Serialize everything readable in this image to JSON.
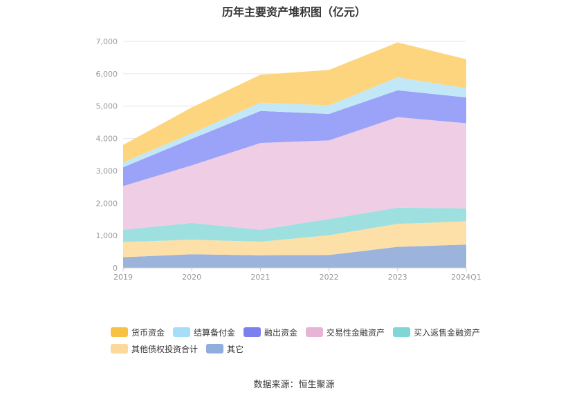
{
  "chart_data": {
    "type": "area",
    "stacked": true,
    "title": "历年主要资产堆积图（亿元）",
    "categories": [
      "2019",
      "2020",
      "2021",
      "2022",
      "2023",
      "2024Q1"
    ],
    "ylim": [
      0,
      7000
    ],
    "yticks": [
      "0",
      "1,000",
      "2,000",
      "3,000",
      "4,000",
      "5,000",
      "6,000",
      "7,000"
    ],
    "grid": true,
    "legend_position": "bottom",
    "series": [
      {
        "name": "其它",
        "color": "#9cb4dc",
        "values": [
          330,
          420,
          390,
          400,
          650,
          720
        ]
      },
      {
        "name": "其他债权投资合计",
        "color": "#fde0a8",
        "values": [
          470,
          450,
          420,
          610,
          710,
          720
        ]
      },
      {
        "name": "买入返售金融资产",
        "color": "#9ee0e0",
        "values": [
          380,
          520,
          370,
          500,
          500,
          400
        ]
      },
      {
        "name": "交易性金融资产",
        "color": "#efcde5",
        "values": [
          1350,
          1780,
          2680,
          2430,
          2800,
          2630
        ]
      },
      {
        "name": "融出资金",
        "color": "#9aa3f8",
        "values": [
          580,
          820,
          990,
          820,
          830,
          800
        ]
      },
      {
        "name": "结算备付金",
        "color": "#c2e8f8",
        "values": [
          150,
          170,
          260,
          260,
          400,
          280
        ]
      },
      {
        "name": "货币资金",
        "color": "#fdd57e",
        "values": [
          540,
          800,
          860,
          1100,
          1080,
          900
        ]
      }
    ],
    "legend_colors": {
      "货币资金": "#f7c242",
      "结算备付金": "#a6def9",
      "融出资金": "#7b7ff0",
      "交易性金融资产": "#e8b4d6",
      "买入返售金融资产": "#7fd6d6",
      "其他债权投资合计": "#fbd99a",
      "其它": "#90aedb"
    },
    "legend_order": [
      "货币资金",
      "结算备付金",
      "融出资金",
      "交易性金融资产",
      "买入返售金融资产",
      "其他债权投资合计",
      "其它"
    ]
  },
  "footer": {
    "source": "数据来源：恒生聚源"
  }
}
